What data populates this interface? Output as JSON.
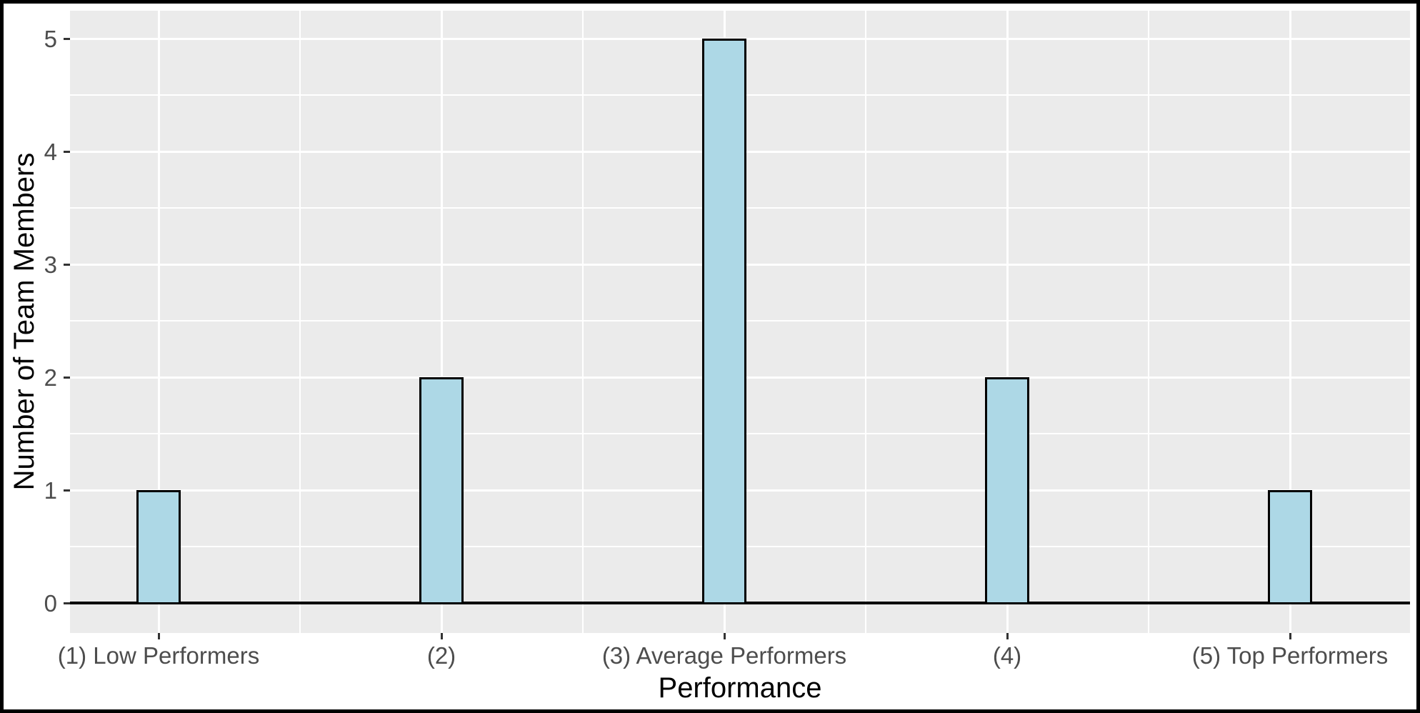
{
  "figure": {
    "background": "#FFFFFF",
    "frame_color": "#000000"
  },
  "chart_data": {
    "type": "bar",
    "title": "",
    "categories": [
      "(1) Low Performers",
      "(2)",
      "(3) Average Performers",
      "(4)",
      "(5) Top Performers"
    ],
    "values": [
      1,
      2,
      5,
      2,
      1
    ],
    "xlabel": "Performance",
    "ylabel": "Number of Team Members",
    "ylim": [
      0,
      5
    ],
    "yticks": [
      0,
      1,
      2,
      3,
      4,
      5
    ],
    "grid": {
      "major": "on",
      "minor": "on",
      "color": "#FFFFFF",
      "panel_background": "#EBEBEB"
    },
    "legend": "none",
    "style": {
      "bar_fill": "#ADD8E6",
      "bar_stroke": "#000000",
      "zero_line_color": "#000000",
      "tick_mark_color": "#333333",
      "tick_label_color": "#4D4D4D",
      "axis_title_color": "#000000"
    }
  }
}
